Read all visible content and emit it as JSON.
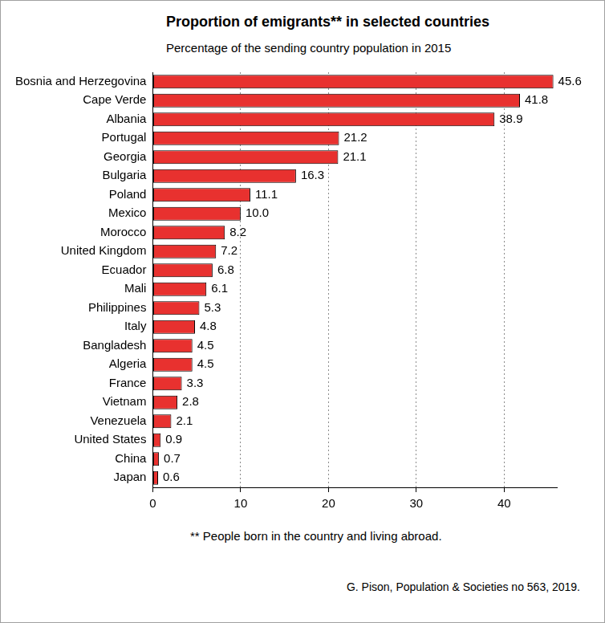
{
  "chart_data": {
    "type": "bar",
    "orientation": "horizontal",
    "title": "Proportion of emigrants** in selected countries",
    "subtitle": "Percentage of the sending country population in 2015",
    "note": "** People born in the country and living abroad.",
    "source": "G. Pison, Population & Societies no 563, 2019.",
    "categories": [
      "Bosnia and Herzegovina",
      "Cape Verde",
      "Albania",
      "Portugal",
      "Georgia",
      "Bulgaria",
      "Poland",
      "Mexico",
      "Morocco",
      "United Kingdom",
      "Ecuador",
      "Mali",
      "Philippines",
      "Italy",
      "Bangladesh",
      "Algeria",
      "France",
      "Vietnam",
      "Venezuela",
      "United States",
      "China",
      "Japan"
    ],
    "values": [
      45.6,
      41.8,
      38.9,
      21.2,
      21.1,
      16.3,
      11.1,
      10.0,
      8.2,
      7.2,
      6.8,
      6.1,
      5.3,
      4.8,
      4.5,
      4.5,
      3.3,
      2.8,
      2.1,
      0.9,
      0.7,
      0.6
    ],
    "value_labels": [
      "45.6",
      "41.8",
      "38.9",
      "21.2",
      "21.1",
      "16.3",
      "11.1",
      "10.0",
      "8.2",
      "7.2",
      "6.8",
      "6.1",
      "5.3",
      "4.8",
      "4.5",
      "4.5",
      "3.3",
      "2.8",
      "2.1",
      "0.9",
      "0.7",
      "0.6"
    ],
    "color": "#e8312f",
    "xlim": [
      0,
      46
    ],
    "xticks": [
      0,
      10,
      20,
      30,
      40
    ],
    "grid": true,
    "data_labels": true
  }
}
